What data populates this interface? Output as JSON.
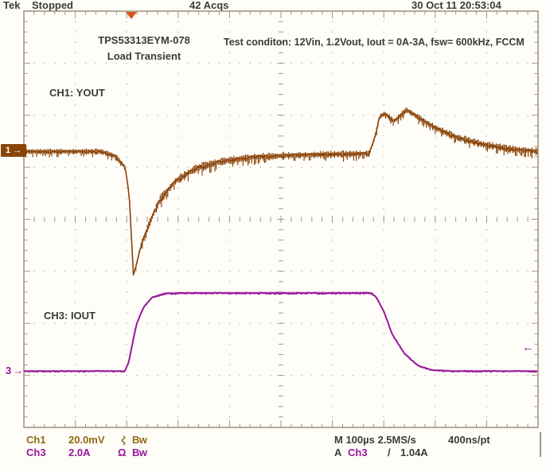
{
  "colors": {
    "ch1_trace": "#8a4408",
    "ch3_trace": "#9b169b",
    "ch1_readout": "#8f6a0e",
    "text": "#3c3c34",
    "grid": "#9e9884",
    "grid_dots": "#bcb6a2",
    "background": "#fefdf8",
    "trigger_marker": "#d9531e"
  },
  "status_bar": {
    "brand": "Tek",
    "acquisition_state": "Stopped",
    "acquisitions": "42 Acqs",
    "datetime": "30 Oct 11 20:53:04"
  },
  "annotations": {
    "device": "TPS53313EYM-078",
    "test_name": "Load Transient",
    "test_condition": "Test conditon: 12Vin, 1.2Vout, Iout = 0A-3A, fsw= 600kHz, FCCM",
    "ch1_label": "CH1: YOUT",
    "ch3_label": "CH3: IOUT"
  },
  "markers": {
    "ch1": "1",
    "ch3": "3",
    "arrow_right": "→",
    "arrow_left": "←"
  },
  "readouts": {
    "ch1": {
      "name": "Ch1",
      "scale": "20.0mV",
      "coupling_icon": "ac-coupling-icon",
      "bandwidth": "Bw"
    },
    "ch3": {
      "name": "Ch3",
      "scale": "2.0A",
      "termination": "Ω",
      "bandwidth": "Bw"
    },
    "timebase": {
      "main": "M 100µs 2.5MS/s",
      "resolution": "400ns/pt"
    },
    "trigger": {
      "mode": "A",
      "source": "Ch3",
      "slope": "/",
      "level": "1.04A"
    }
  },
  "chart_data": {
    "type": "line",
    "title": "TPS53313EYM-078 Load Transient",
    "subtitle": "Test conditon: 12Vin, 1.2Vout, Iout = 0A-3A, fsw= 600kHz, FCCM",
    "x_axis": {
      "scale_per_division": "100µs",
      "divisions": 10,
      "sample_rate": "2.5MS/s",
      "resolution": "400ns/pt"
    },
    "y_axis": {
      "divisions": 8
    },
    "grid": "dotted-divisions-with-center-hash",
    "trigger": {
      "source": "Ch3",
      "level": "1.04A",
      "slope": "rising",
      "position_div": 2.1
    },
    "series": [
      {
        "name": "CH1: YOUT",
        "channel": "Ch1",
        "scale_per_division": "20.0mV",
        "color": "#8a4408",
        "seed": 11,
        "baseline_div": 2.7,
        "points_div": [
          [
            0.0,
            2.7,
            4
          ],
          [
            1.5,
            2.7,
            4
          ],
          [
            1.78,
            2.79,
            4
          ],
          [
            1.97,
            3.0,
            3
          ],
          [
            2.05,
            3.55,
            2.5
          ],
          [
            2.13,
            5.06,
            2
          ],
          [
            2.18,
            4.92,
            3
          ],
          [
            2.28,
            4.5,
            4.5
          ],
          [
            2.44,
            4.08,
            5.5
          ],
          [
            2.65,
            3.62,
            6
          ],
          [
            2.95,
            3.27,
            6
          ],
          [
            3.35,
            3.02,
            6
          ],
          [
            3.85,
            2.89,
            6
          ],
          [
            4.45,
            2.81,
            5.5
          ],
          [
            5.3,
            2.77,
            5
          ],
          [
            6.2,
            2.75,
            5
          ],
          [
            6.72,
            2.74,
            4.5
          ],
          [
            6.82,
            2.45,
            4
          ],
          [
            6.92,
            2.03,
            4
          ],
          [
            7.02,
            1.97,
            4
          ],
          [
            7.2,
            2.12,
            4.5
          ],
          [
            7.44,
            1.9,
            4.5
          ],
          [
            7.62,
            2.01,
            4.5
          ],
          [
            7.97,
            2.23,
            5
          ],
          [
            8.42,
            2.43,
            5
          ],
          [
            8.92,
            2.56,
            5
          ],
          [
            9.45,
            2.65,
            5
          ],
          [
            10.0,
            2.7,
            5
          ]
        ]
      },
      {
        "name": "CH3: IOUT",
        "channel": "Ch3",
        "scale_per_division": "2.0A",
        "color": "#9b169b",
        "seed": 23,
        "baseline_div": 6.92,
        "points_div": [
          [
            0.0,
            6.92,
            1.5
          ],
          [
            1.96,
            6.92,
            1.5
          ],
          [
            2.03,
            6.78,
            1.5
          ],
          [
            2.1,
            6.45,
            1.5
          ],
          [
            2.19,
            6.02,
            1.5
          ],
          [
            2.32,
            5.7,
            1.5
          ],
          [
            2.5,
            5.5,
            1.5
          ],
          [
            2.73,
            5.43,
            1.8
          ],
          [
            3.1,
            5.42,
            2
          ],
          [
            6.76,
            5.42,
            2
          ],
          [
            6.86,
            5.51,
            1.5
          ],
          [
            7.0,
            5.77,
            1.5
          ],
          [
            7.17,
            6.22,
            1.5
          ],
          [
            7.4,
            6.58,
            1.5
          ],
          [
            7.66,
            6.81,
            1.5
          ],
          [
            7.92,
            6.9,
            1.5
          ],
          [
            8.35,
            6.92,
            1.5
          ],
          [
            10.0,
            6.92,
            1.5
          ]
        ]
      }
    ]
  }
}
